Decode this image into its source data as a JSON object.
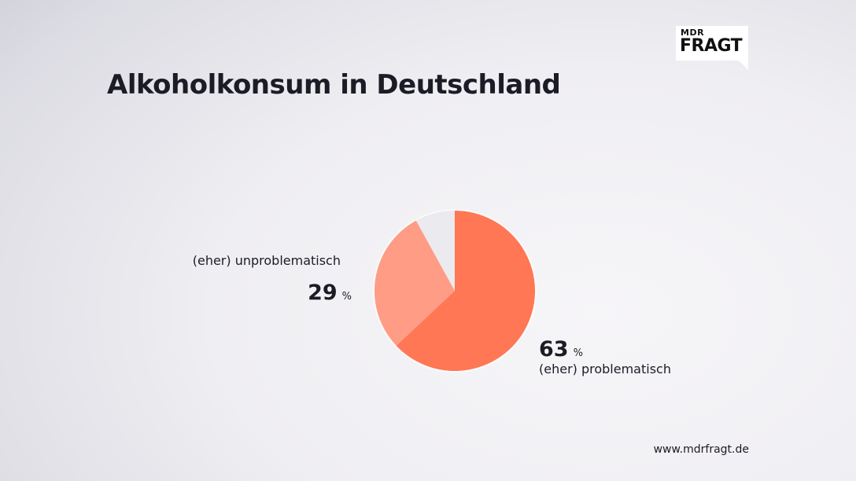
{
  "brand": {
    "logo_small": "MDR",
    "logo_big": "FRAGT",
    "url": "www.mdrfragt.de"
  },
  "chart_data": {
    "type": "pie",
    "title": "Alkoholkonsum in Deutschland",
    "slices": [
      {
        "label": "(eher) problematisch",
        "value": 63,
        "unit": "%",
        "color": "#ff7754"
      },
      {
        "label": "(eher) unproblematisch",
        "value": 29,
        "unit": "%",
        "color": "#ff9c85"
      },
      {
        "label": "",
        "value": 8,
        "unit": "%",
        "color": "#ebeaee"
      }
    ]
  }
}
